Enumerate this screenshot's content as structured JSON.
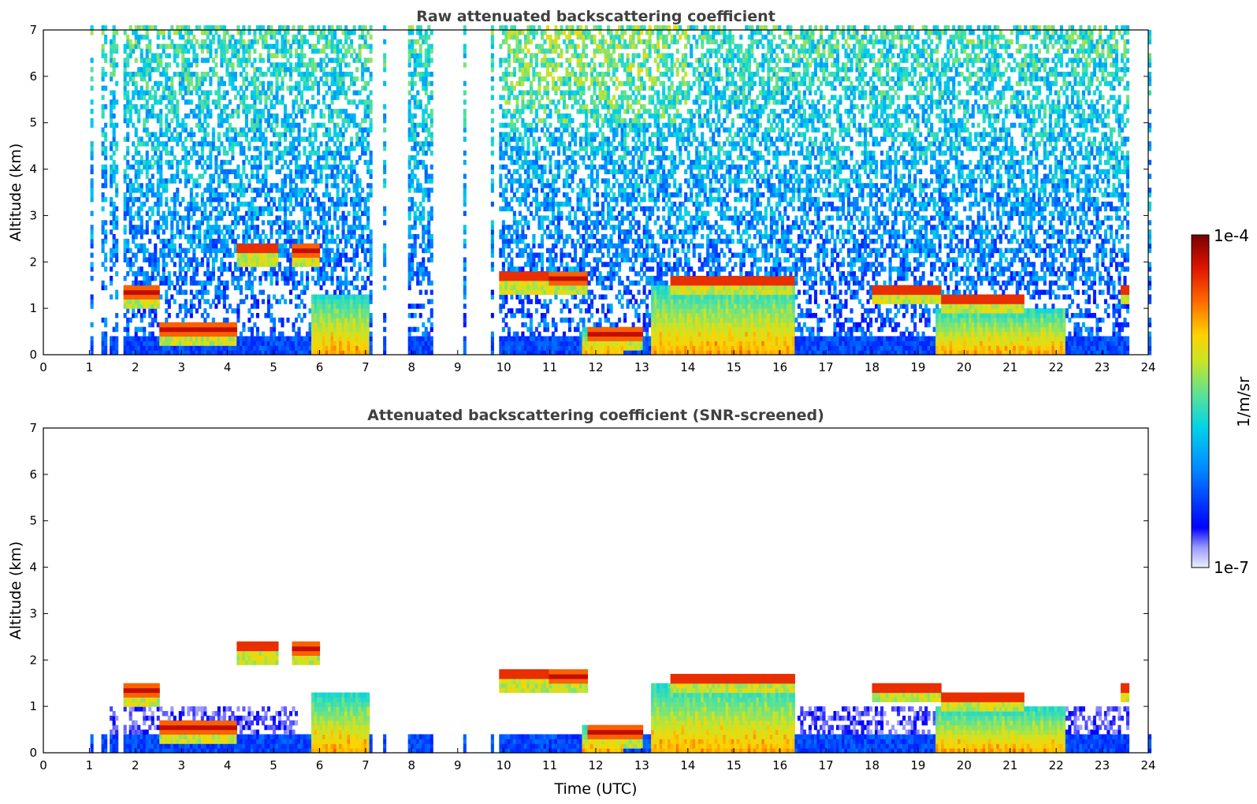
{
  "chart_data": [
    {
      "type": "heatmap",
      "title": "Raw attenuated backscattering coefficient",
      "xlabel": "",
      "ylabel": "Altitude (km)",
      "xlim": [
        0,
        24
      ],
      "ylim": [
        0,
        7
      ],
      "xticks": [
        "0",
        "1",
        "2",
        "3",
        "4",
        "5",
        "6",
        "7",
        "8",
        "9",
        "10",
        "11",
        "12",
        "13",
        "14",
        "15",
        "16",
        "17",
        "18",
        "19",
        "20",
        "21",
        "22",
        "23",
        "24"
      ],
      "yticks": [
        "0",
        "1",
        "2",
        "3",
        "4",
        "5",
        "6",
        "7"
      ],
      "screened": false,
      "data_gaps_hours": [
        [
          0,
          1.03
        ],
        [
          1.09,
          1.25
        ],
        [
          1.38,
          1.42
        ],
        [
          1.65,
          1.75
        ],
        [
          7.12,
          7.38
        ],
        [
          7.42,
          7.92
        ],
        [
          8.45,
          9.1
        ],
        [
          9.15,
          9.7
        ],
        [
          9.75,
          9.88
        ],
        [
          23.58,
          24
        ]
      ],
      "features": [
        {
          "kind": "cloud_layer",
          "t_start": 1.75,
          "t_end": 2.5,
          "alt_km": 1.35
        },
        {
          "kind": "cloud_layer",
          "t_start": 2.5,
          "t_end": 4.2,
          "alt_km": 0.55
        },
        {
          "kind": "cloud_layer",
          "t_start": 4.2,
          "t_end": 5.1,
          "alt_km": 2.3
        },
        {
          "kind": "cloud_layer",
          "t_start": 5.4,
          "t_end": 6.0,
          "alt_km": 2.25
        },
        {
          "kind": "cloud_layer",
          "t_start": 9.9,
          "t_end": 11.0,
          "alt_km": 1.7
        },
        {
          "kind": "cloud_layer",
          "t_start": 11.0,
          "t_end": 11.8,
          "alt_km": 1.65
        },
        {
          "kind": "cloud_layer",
          "t_start": 11.8,
          "t_end": 13.0,
          "alt_km": 0.45
        },
        {
          "kind": "cloud_layer",
          "t_start": 13.6,
          "t_end": 16.3,
          "alt_km": 1.6
        },
        {
          "kind": "cloud_layer",
          "t_start": 18.0,
          "t_end": 19.5,
          "alt_km": 1.4
        },
        {
          "kind": "cloud_layer",
          "t_start": 19.5,
          "t_end": 21.3,
          "alt_km": 1.2
        },
        {
          "kind": "cloud_layer",
          "t_start": 23.4,
          "t_end": 23.6,
          "alt_km": 1.4
        },
        {
          "kind": "precip_virga",
          "t_start": 5.8,
          "t_end": 7.1,
          "alt_top_km": 1.3
        },
        {
          "kind": "precip_virga",
          "t_start": 11.7,
          "t_end": 12.6,
          "alt_top_km": 0.6
        },
        {
          "kind": "precip_virga",
          "t_start": 13.2,
          "t_end": 16.3,
          "alt_top_km": 1.5
        },
        {
          "kind": "precip_virga",
          "t_start": 19.4,
          "t_end": 22.2,
          "alt_top_km": 1.0
        }
      ]
    },
    {
      "type": "heatmap",
      "title": "Attenuated backscattering coefficient (SNR-screened)",
      "xlabel": "Time (UTC)",
      "ylabel": "Altitude (km)",
      "xlim": [
        0,
        24
      ],
      "ylim": [
        0,
        7
      ],
      "xticks": [
        "0",
        "1",
        "2",
        "3",
        "4",
        "5",
        "6",
        "7",
        "8",
        "9",
        "10",
        "11",
        "12",
        "13",
        "14",
        "15",
        "16",
        "17",
        "18",
        "19",
        "20",
        "21",
        "22",
        "23",
        "24"
      ],
      "yticks": [
        "0",
        "1",
        "2",
        "3",
        "4",
        "5",
        "6",
        "7"
      ],
      "screened": true
    }
  ],
  "colorbar": {
    "label": "1/m/sr",
    "max_label": "1e-4",
    "min_label": "1e-7",
    "scale": "log",
    "colormap": [
      "#e6e6ff",
      "#0000ff",
      "#00b4ff",
      "#33e0c0",
      "#9fe34a",
      "#ffe600",
      "#ff7a00",
      "#e01000",
      "#7f0000"
    ]
  }
}
